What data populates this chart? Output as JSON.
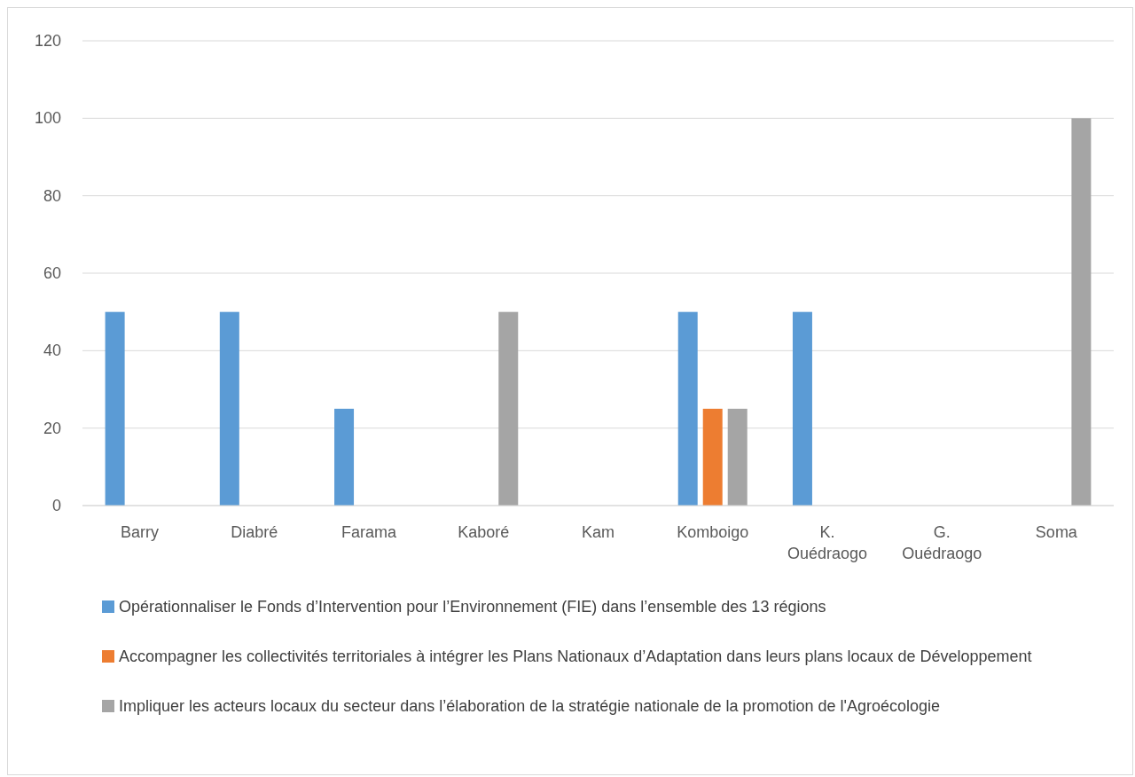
{
  "chart_data": {
    "type": "bar",
    "categories": [
      "Barry",
      "Diabré",
      "Farama",
      "Kaboré",
      "Kam",
      "Komboigo",
      "K. Ouédraogo",
      "G. Ouédraogo",
      "Soma"
    ],
    "series": [
      {
        "name": "Opérationnaliser le Fonds d’Intervention pour l’Environnement (FIE) dans l’ensemble des 13 régions",
        "color": "#5b9bd5",
        "values": [
          50,
          50,
          25,
          0,
          0,
          50,
          50,
          0,
          0
        ]
      },
      {
        "name": "Accompagner les collectivités territoriales à intégrer les Plans Nationaux d’Adaptation dans leurs plans locaux de Développement",
        "color": "#ed7d31",
        "values": [
          0,
          0,
          0,
          0,
          0,
          25,
          0,
          0,
          0
        ]
      },
      {
        "name": "Impliquer les acteurs locaux du secteur dans l’élaboration de la stratégie nationale de la promotion de l'Agroécologie",
        "color": "#a5a5a5",
        "values": [
          0,
          0,
          0,
          50,
          0,
          25,
          0,
          0,
          100
        ]
      }
    ],
    "ylim": [
      0,
      120
    ],
    "yticks": [
      0,
      20,
      40,
      60,
      80,
      100,
      120
    ],
    "grid": "y",
    "legend": "bottom"
  }
}
